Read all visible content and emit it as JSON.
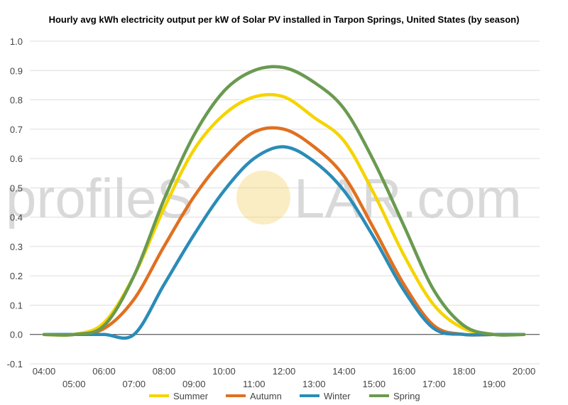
{
  "title": "Hourly avg kWh electricity output per kW of Solar PV installed in Tarpon Springs, United States (by season)",
  "watermark": {
    "left_text": "profileS",
    "right_text": "LAR.com",
    "sun_color": "#f6d77a"
  },
  "chart_data": {
    "type": "line",
    "x": [
      "04:00",
      "05:00",
      "06:00",
      "07:00",
      "08:00",
      "09:00",
      "10:00",
      "11:00",
      "12:00",
      "13:00",
      "14:00",
      "15:00",
      "16:00",
      "17:00",
      "18:00",
      "19:00",
      "20:00"
    ],
    "ylim": [
      -0.1,
      1.0
    ],
    "yticks": [
      "-0.1",
      "0.0",
      "0.1",
      "0.2",
      "0.3",
      "0.4",
      "0.5",
      "0.6",
      "0.7",
      "0.8",
      "0.9",
      "1.0"
    ],
    "grid": true,
    "legend_position": "bottom",
    "series": [
      {
        "name": "Summer",
        "color": "#f5d400",
        "values": [
          0.0,
          0.0,
          0.04,
          0.2,
          0.43,
          0.63,
          0.75,
          0.81,
          0.81,
          0.74,
          0.66,
          0.48,
          0.27,
          0.1,
          0.02,
          0.0,
          0.0
        ]
      },
      {
        "name": "Autumn",
        "color": "#e07020",
        "values": [
          0.0,
          0.0,
          0.02,
          0.12,
          0.3,
          0.47,
          0.6,
          0.69,
          0.7,
          0.64,
          0.54,
          0.36,
          0.17,
          0.03,
          0.0,
          0.0,
          0.0
        ]
      },
      {
        "name": "Winter",
        "color": "#2a8cb8",
        "values": [
          0.0,
          0.0,
          0.0,
          0.0,
          0.17,
          0.34,
          0.49,
          0.6,
          0.64,
          0.59,
          0.49,
          0.33,
          0.15,
          0.02,
          0.0,
          0.0,
          0.0
        ]
      },
      {
        "name": "Spring",
        "color": "#6a9a50",
        "values": [
          0.0,
          0.0,
          0.03,
          0.2,
          0.46,
          0.68,
          0.83,
          0.9,
          0.91,
          0.86,
          0.77,
          0.59,
          0.37,
          0.15,
          0.03,
          0.0,
          0.0
        ]
      }
    ]
  }
}
